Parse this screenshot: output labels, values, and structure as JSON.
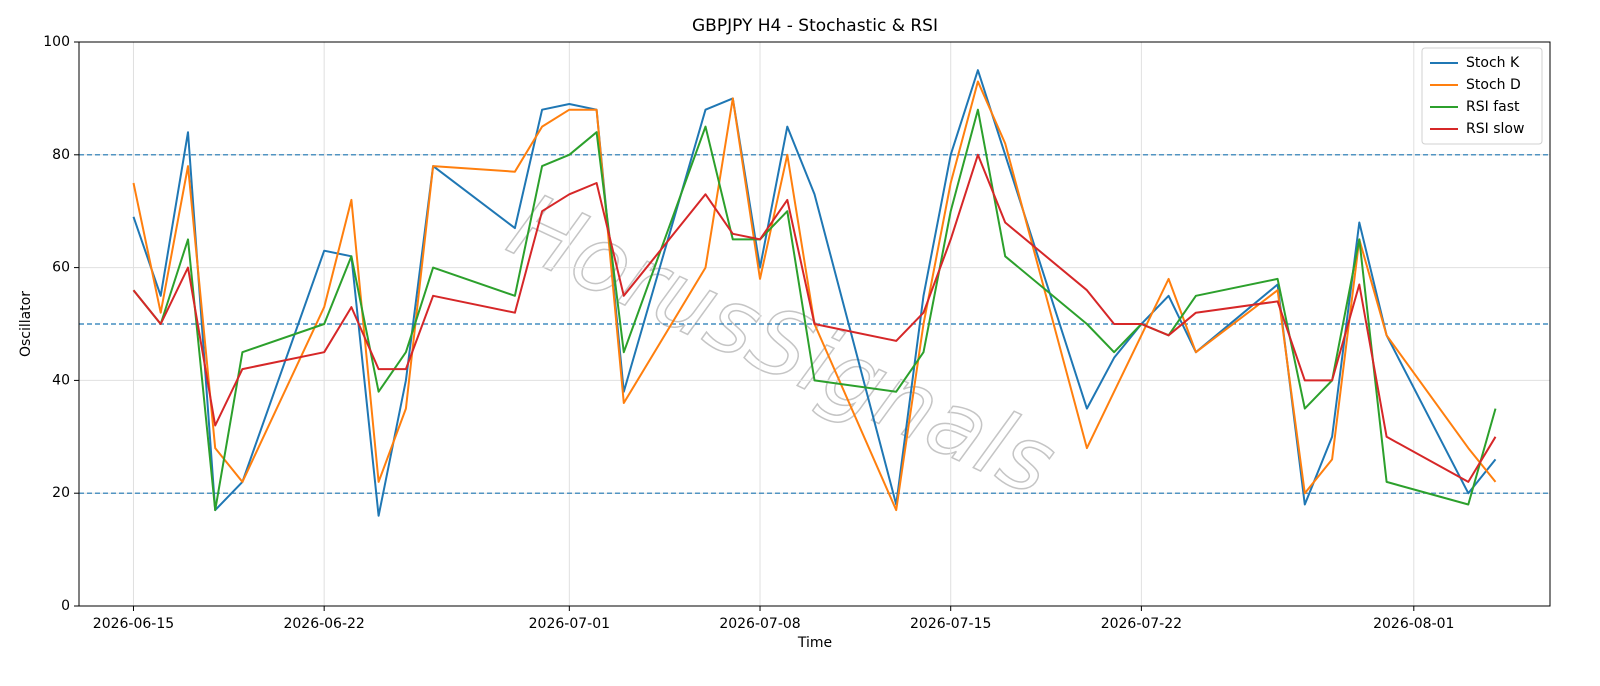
{
  "chart_data": {
    "type": "line",
    "title": "GBPJPY H4 - Stochastic & RSI",
    "x_label": "Time",
    "y_label": "Oscillator",
    "watermark": "HorusSignals",
    "x": [
      "2026-06-15",
      "2026-06-16",
      "2026-06-17",
      "2026-06-18",
      "2026-06-19",
      "2026-06-22",
      "2026-06-23",
      "2026-06-24",
      "2026-06-25",
      "2026-06-26",
      "2026-06-29",
      "2026-06-30",
      "2026-07-01",
      "2026-07-02",
      "2026-07-03",
      "2026-07-06",
      "2026-07-07",
      "2026-07-08",
      "2026-07-09",
      "2026-07-10",
      "2026-07-13",
      "2026-07-14",
      "2026-07-15",
      "2026-07-16",
      "2026-07-17",
      "2026-07-20",
      "2026-07-21",
      "2026-07-22",
      "2026-07-23",
      "2026-07-24",
      "2026-07-27",
      "2026-07-28",
      "2026-07-29",
      "2026-07-30",
      "2026-07-31",
      "2026-08-03",
      "2026-08-04"
    ],
    "series": [
      {
        "name": "Stoch K",
        "color": "#1f77b4",
        "values": [
          69,
          55,
          84,
          17,
          22,
          63,
          62,
          16,
          40,
          78,
          67,
          88,
          89,
          88,
          38,
          88,
          90,
          60,
          85,
          73,
          18,
          55,
          80,
          95,
          80,
          35,
          44,
          50,
          55,
          45,
          57,
          18,
          30,
          68,
          48,
          20,
          26
        ]
      },
      {
        "name": "Stoch D",
        "color": "#ff7f0e",
        "values": [
          75,
          52,
          78,
          28,
          22,
          53,
          72,
          22,
          35,
          78,
          77,
          85,
          88,
          88,
          36,
          60,
          90,
          58,
          80,
          50,
          17,
          50,
          75,
          93,
          82,
          28,
          38,
          48,
          58,
          45,
          56,
          20,
          26,
          65,
          48,
          28,
          22
        ]
      },
      {
        "name": "RSI fast",
        "color": "#2ca02c",
        "values": [
          56,
          50,
          65,
          17,
          45,
          50,
          62,
          38,
          45,
          60,
          55,
          78,
          80,
          84,
          45,
          85,
          65,
          65,
          70,
          40,
          38,
          45,
          70,
          88,
          62,
          50,
          45,
          50,
          48,
          55,
          58,
          35,
          40,
          65,
          22,
          18,
          35
        ]
      },
      {
        "name": "RSI slow",
        "color": "#d62728",
        "values": [
          56,
          50,
          60,
          32,
          42,
          45,
          53,
          42,
          42,
          55,
          52,
          70,
          73,
          75,
          55,
          73,
          66,
          65,
          72,
          50,
          47,
          52,
          65,
          80,
          68,
          56,
          50,
          50,
          48,
          52,
          54,
          40,
          40,
          57,
          30,
          22,
          30
        ]
      }
    ],
    "xlim": [
      "2026-06-13",
      "2026-08-06"
    ],
    "xticks": [
      "2026-06-15",
      "2026-06-22",
      "2026-07-01",
      "2026-07-08",
      "2026-07-15",
      "2026-07-22",
      "2026-08-01"
    ],
    "ylim": [
      0,
      100
    ],
    "yticks": [
      0,
      20,
      40,
      60,
      80,
      100
    ],
    "hlines": [
      20,
      50,
      80
    ],
    "hline_color": "#1f77b4",
    "grid": true,
    "legend": "upper right"
  }
}
